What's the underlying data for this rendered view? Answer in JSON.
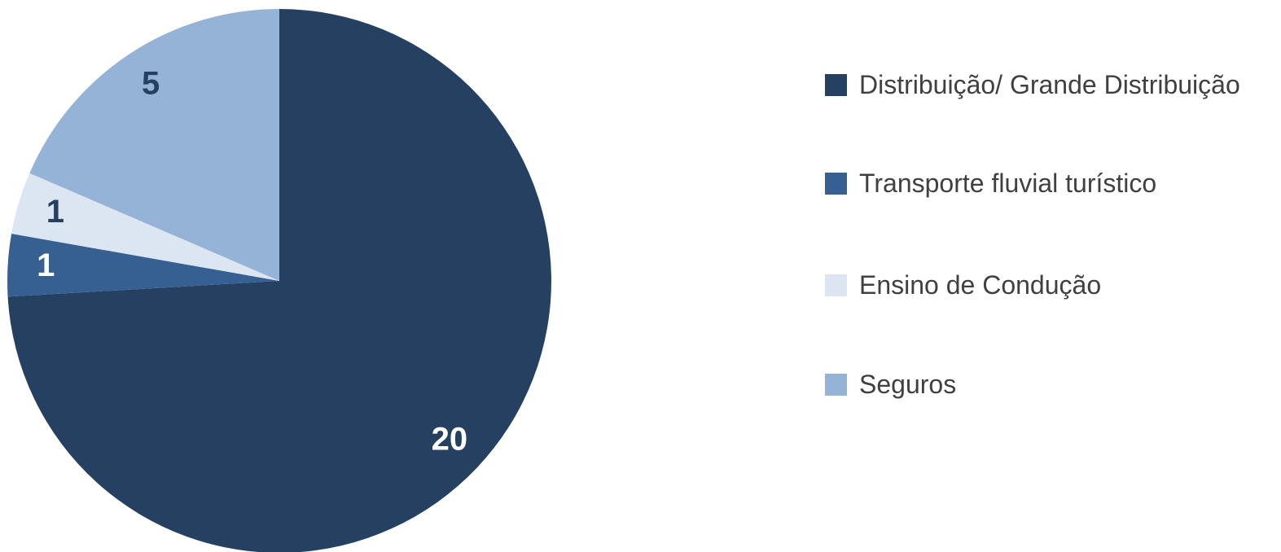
{
  "chart_data": {
    "type": "pie",
    "categories": [
      "Distribuição/ Grande Distribuição",
      "Transporte fluvial turístico",
      "Ensino de Condução",
      "Seguros"
    ],
    "values": [
      20,
      1,
      1,
      5
    ],
    "colors": [
      "#264061",
      "#376092",
      "#dce6f2",
      "#95b3d7"
    ],
    "label_colors": [
      "#ffffff",
      "#ffffff",
      "#264061",
      "#264061"
    ],
    "legend": "right"
  }
}
